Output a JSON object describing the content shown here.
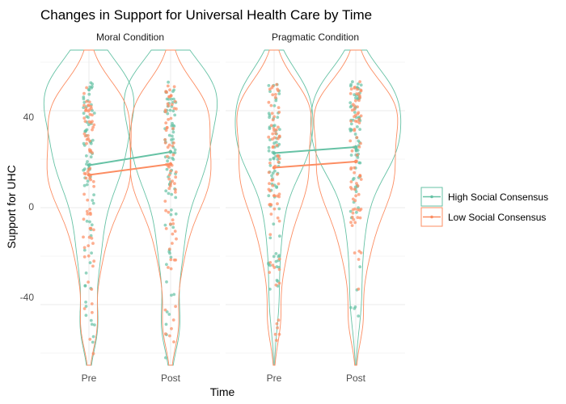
{
  "chart_data": {
    "type": "violin",
    "title": "Changes in Support for Universal Health Care by Time",
    "xlabel": "Time",
    "ylabel": "Support for UHC",
    "ylim": [
      -65,
      65
    ],
    "yticks": [
      -40,
      0,
      40
    ],
    "categories": [
      "Pre",
      "Post"
    ],
    "grid": true,
    "legend_position": "right",
    "panels": [
      {
        "name": "Moral Condition",
        "series": [
          {
            "name": "High Social Consensus",
            "color": "#66c2a5",
            "means": [
              17.5,
              23
            ],
            "density_scale": [
              0.58,
              0.6
            ],
            "density": [
              {
                "center": 48,
                "spread": 14,
                "weight": 1.0
              },
              {
                "center": 20,
                "spread": 15,
                "weight": 0.75
              },
              {
                "center": -15,
                "spread": 18,
                "weight": 0.3
              },
              {
                "center": -50,
                "spread": 10,
                "weight": 0.18
              }
            ]
          },
          {
            "name": "Low Social Consensus",
            "color": "#fc8d62",
            "means": [
              13.5,
              18
            ],
            "density_scale": [
              0.54,
              0.52
            ],
            "density": [
              {
                "center": 42,
                "spread": 12,
                "weight": 0.75
              },
              {
                "center": 14,
                "spread": 16,
                "weight": 1.0
              },
              {
                "center": -20,
                "spread": 16,
                "weight": 0.28
              },
              {
                "center": -50,
                "spread": 9,
                "weight": 0.16
              }
            ]
          }
        ]
      },
      {
        "name": "Pragmatic Condition",
        "series": [
          {
            "name": "High Social Consensus",
            "color": "#66c2a5",
            "means": [
              22.5,
              25
            ],
            "density_scale": [
              0.5,
              0.58
            ],
            "density": [
              {
                "center": 48,
                "spread": 12,
                "weight": 0.8
              },
              {
                "center": 26,
                "spread": 14,
                "weight": 1.0
              },
              {
                "center": -5,
                "spread": 18,
                "weight": 0.25
              },
              {
                "center": -40,
                "spread": 12,
                "weight": 0.12
              }
            ]
          },
          {
            "name": "Low Social Consensus",
            "color": "#fc8d62",
            "means": [
              16.5,
              19
            ],
            "density_scale": [
              0.48,
              0.54
            ],
            "density": [
              {
                "center": 42,
                "spread": 12,
                "weight": 0.9
              },
              {
                "center": 14,
                "spread": 16,
                "weight": 1.0
              },
              {
                "center": -18,
                "spread": 16,
                "weight": 0.3
              },
              {
                "center": -48,
                "spread": 9,
                "weight": 0.15
              }
            ]
          }
        ]
      }
    ]
  }
}
